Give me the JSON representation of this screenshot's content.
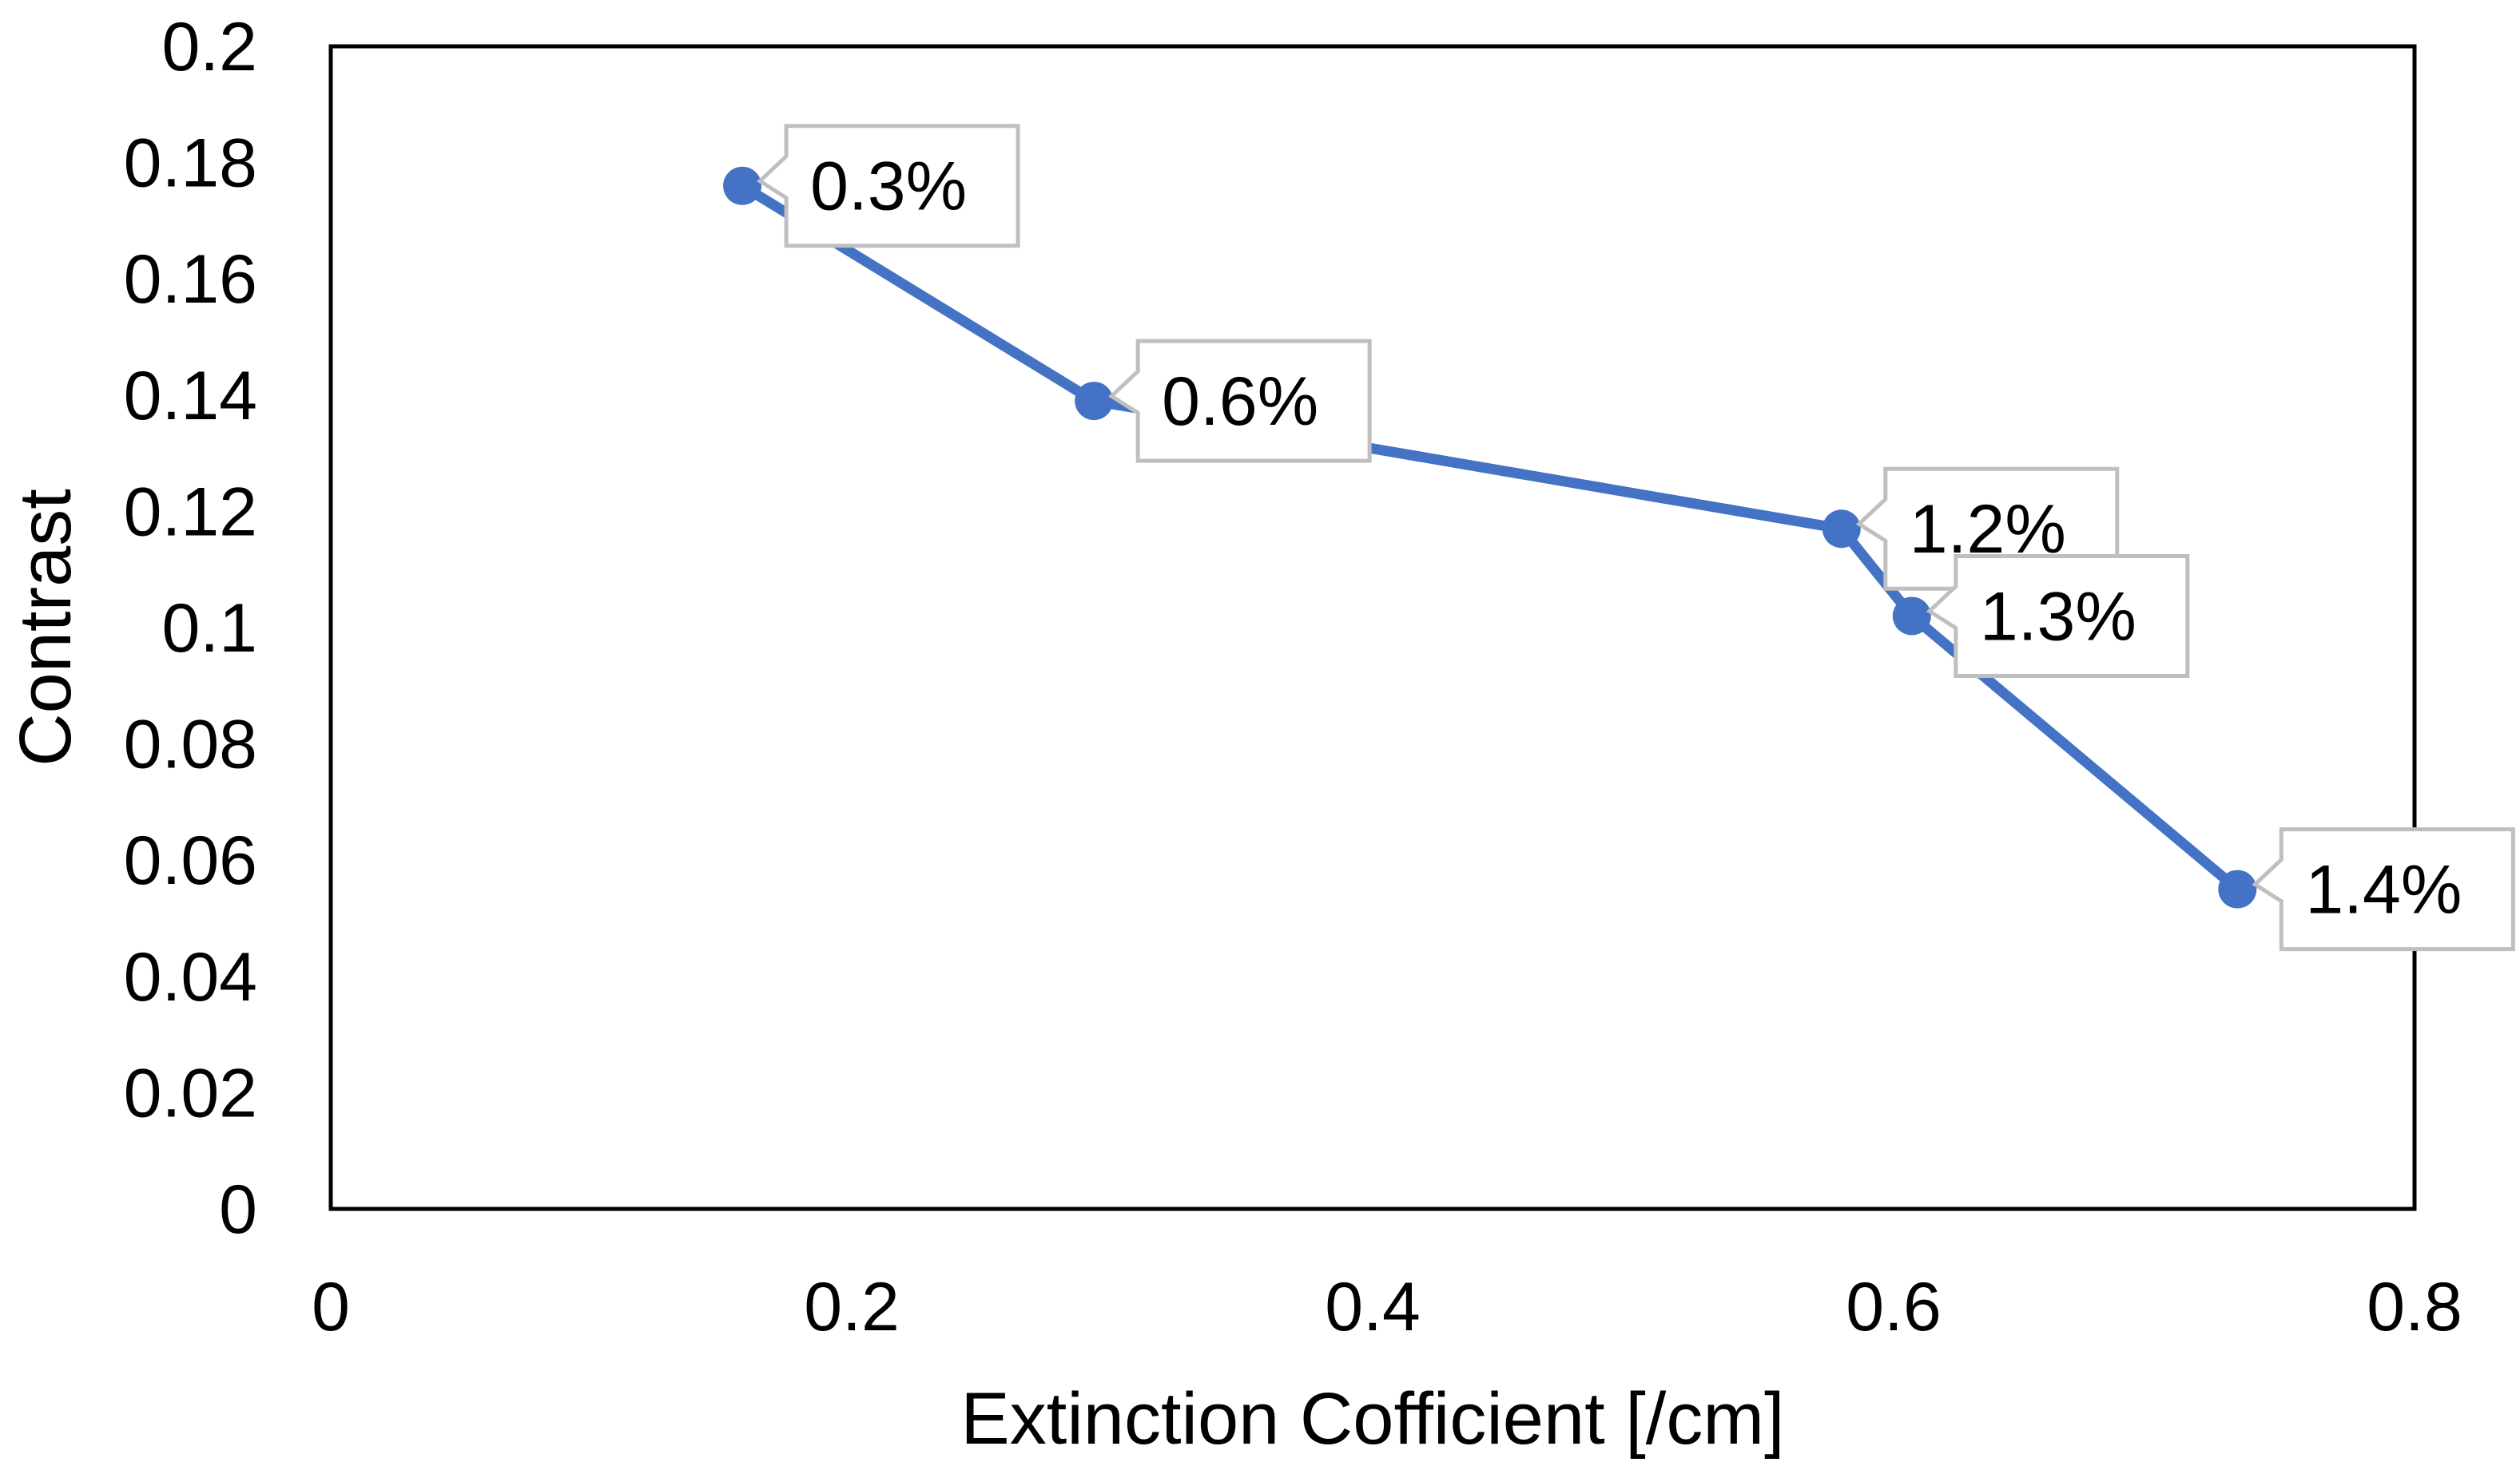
{
  "chart_data": {
    "type": "scatter",
    "title": "",
    "xlabel": "Extinction Cofficient [/cm]",
    "ylabel": "Contrast",
    "xlim": [
      0,
      0.8
    ],
    "ylim": [
      0,
      0.2
    ],
    "x_ticks": [
      "0",
      "0.2",
      "0.4",
      "0.6",
      "0.8"
    ],
    "y_ticks": [
      "0",
      "0.02",
      "0.04",
      "0.06",
      "0.08",
      "0.1",
      "0.12",
      "0.14",
      "0.16",
      "0.18",
      "0.2"
    ],
    "grid": false,
    "series": [
      {
        "name": "Contrast",
        "color": "#4472C4",
        "x": [
          0.158,
          0.293,
          0.58,
          0.607,
          0.732
        ],
        "y": [
          0.176,
          0.139,
          0.117,
          0.102,
          0.055
        ],
        "labels": [
          "0.3%",
          "0.6%",
          "1.2%",
          "1.3%",
          "1.4%"
        ]
      }
    ]
  }
}
